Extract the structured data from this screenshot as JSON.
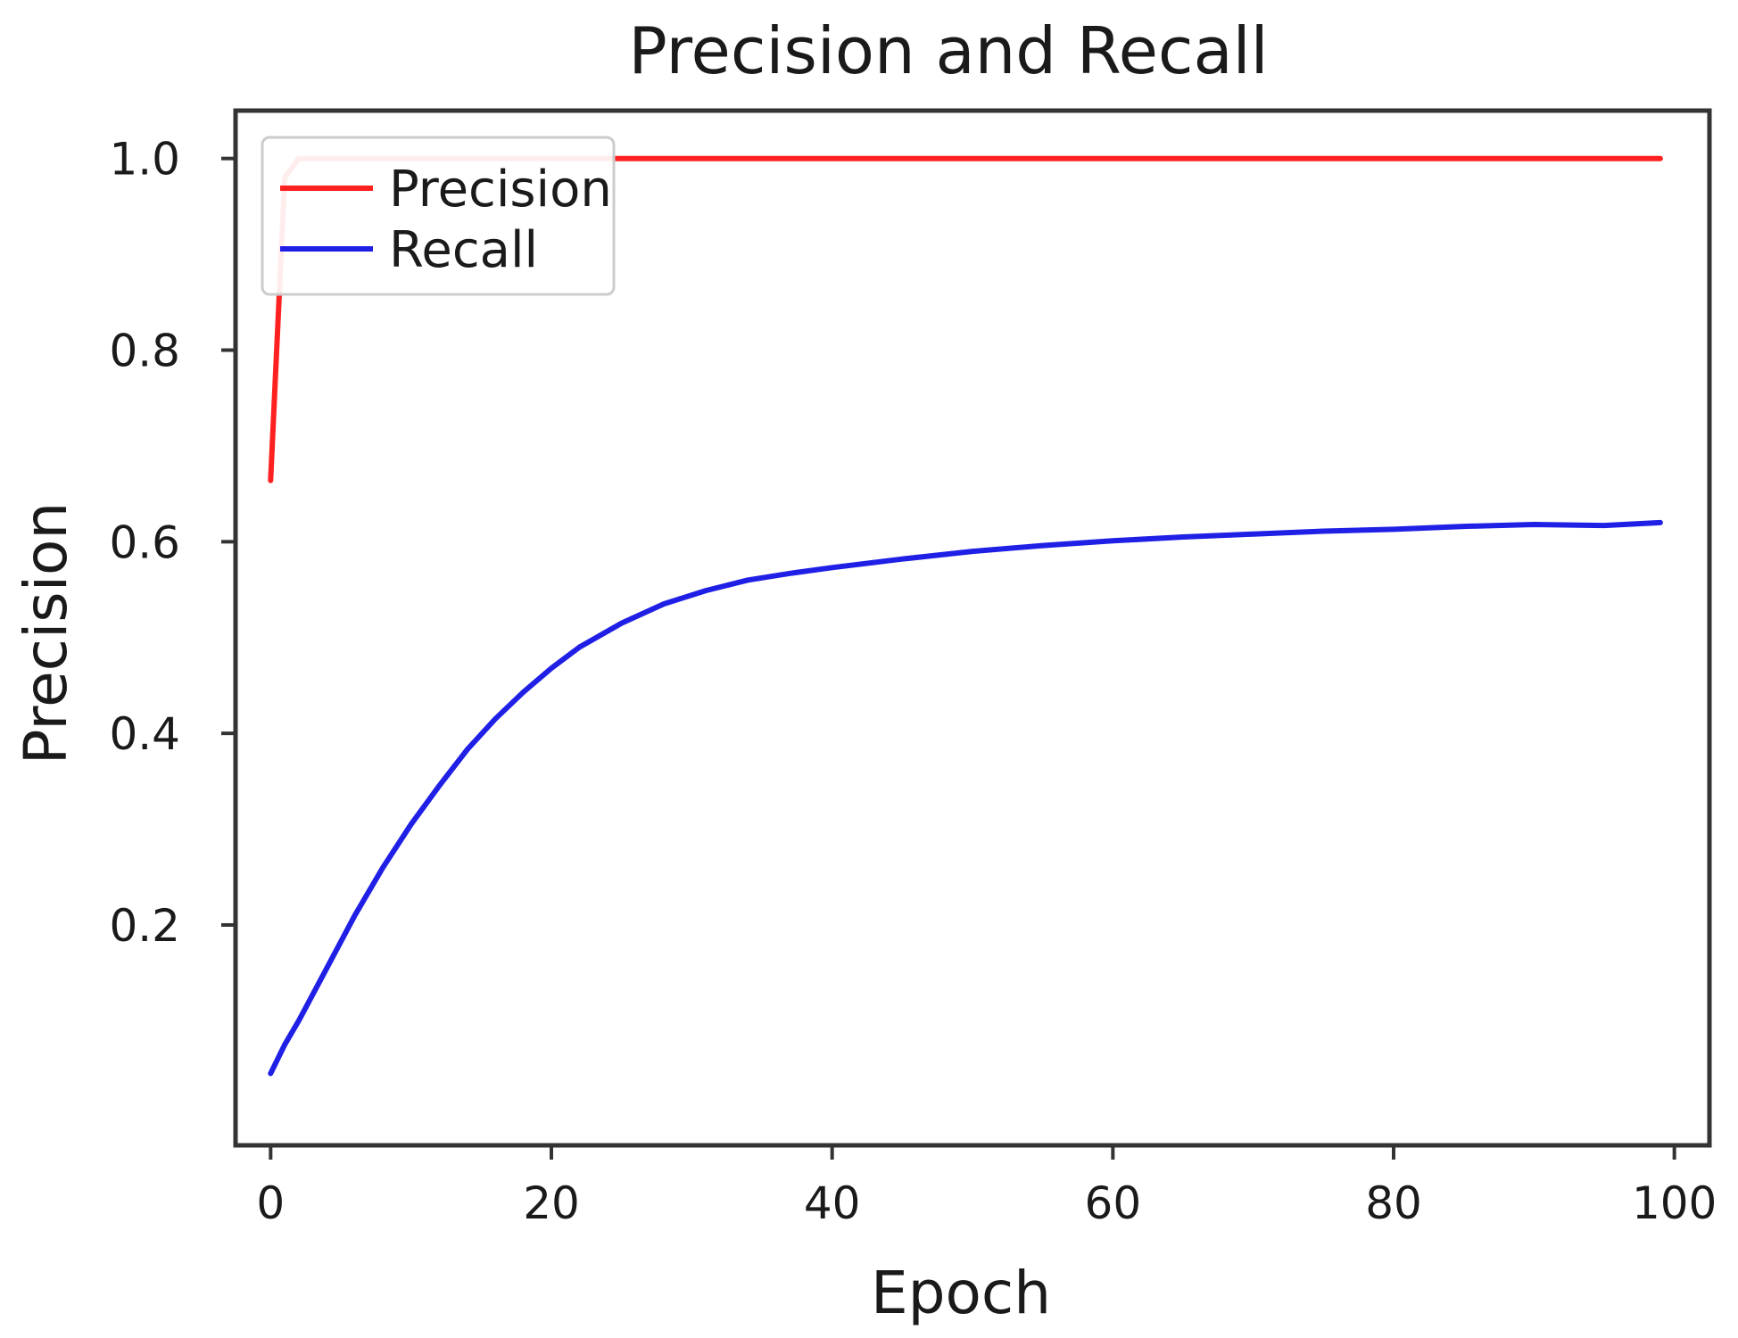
{
  "chart_data": {
    "type": "line",
    "title": "Precision and Recall",
    "xlabel": "Epoch",
    "ylabel": "Precision",
    "xlim": [
      -2.5,
      102.5
    ],
    "ylim": [
      -0.03,
      1.05
    ],
    "xticks": [
      0,
      20,
      40,
      60,
      80,
      100
    ],
    "xtick_labels": [
      "0",
      "20",
      "40",
      "60",
      "80",
      "100"
    ],
    "yticks": [
      0.2,
      0.4,
      0.6,
      0.8,
      1.0
    ],
    "ytick_labels": [
      "0.2",
      "0.4",
      "0.6",
      "0.8",
      "1.0"
    ],
    "grid": false,
    "legend_position": "upper-left",
    "series": [
      {
        "name": "Precision",
        "color": "#ff2020",
        "x": [
          0,
          1,
          2,
          3,
          5,
          10,
          20,
          30,
          40,
          50,
          60,
          70,
          80,
          90,
          99
        ],
        "y": [
          0.664,
          0.98,
          1.0,
          1.0,
          1.0,
          1.0,
          1.0,
          1.0,
          1.0,
          1.0,
          1.0,
          1.0,
          1.0,
          1.0,
          1.0
        ]
      },
      {
        "name": "Recall",
        "color": "#1f1fe6",
        "x": [
          0,
          1,
          2,
          4,
          6,
          8,
          10,
          12,
          14,
          16,
          18,
          20,
          22,
          25,
          28,
          31,
          34,
          37,
          40,
          45,
          50,
          55,
          60,
          65,
          70,
          75,
          80,
          85,
          90,
          95,
          99
        ],
        "y": [
          0.045,
          0.075,
          0.1,
          0.155,
          0.21,
          0.26,
          0.305,
          0.345,
          0.383,
          0.415,
          0.443,
          0.468,
          0.49,
          0.515,
          0.535,
          0.549,
          0.56,
          0.567,
          0.573,
          0.582,
          0.59,
          0.596,
          0.601,
          0.605,
          0.608,
          0.611,
          0.613,
          0.616,
          0.618,
          0.617,
          0.62
        ]
      }
    ]
  }
}
